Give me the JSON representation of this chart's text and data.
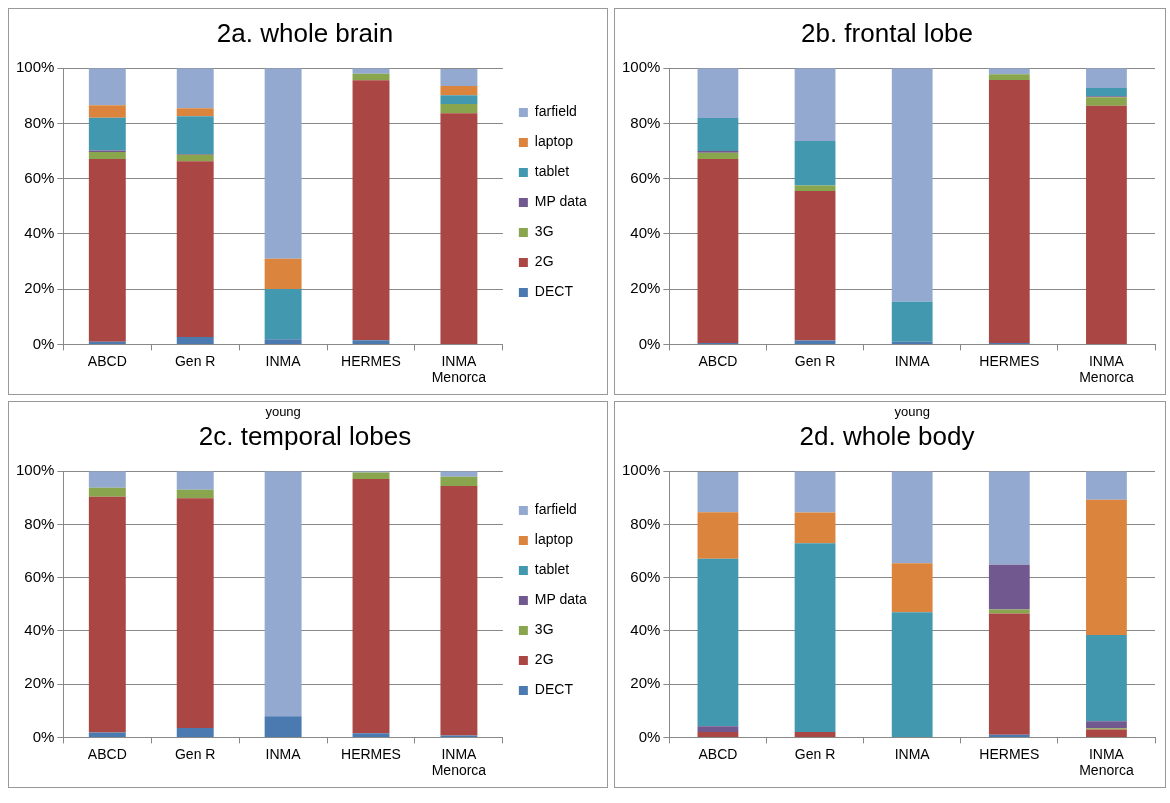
{
  "chart_data": [
    {
      "type": "bar",
      "title": "2a. whole brain",
      "stacked": true,
      "grid": "y",
      "legend": "right",
      "categories": [
        "ABCD",
        "Gen R",
        "INMA",
        "HERMES",
        "INMA Menorca"
      ],
      "ylim": [
        0,
        100
      ],
      "yticks": [
        {
          "value": 0,
          "label": "0%"
        },
        {
          "value": 20,
          "label": "20%"
        },
        {
          "value": 40,
          "label": "40%"
        },
        {
          "value": 60,
          "label": "60%"
        },
        {
          "value": 80,
          "label": "80%"
        },
        {
          "value": 100,
          "label": "100%"
        }
      ],
      "series": [
        {
          "name": "DECT",
          "color": "#4a7ab0",
          "values": [
            1,
            2.7,
            1.9,
            1.5,
            null
          ]
        },
        {
          "name": "2G",
          "color": "#aa4643",
          "values": [
            66.1,
            63.6,
            0,
            94.1,
            83.7
          ]
        },
        {
          "name": "3G",
          "color": "#89a54e",
          "values": [
            2.6,
            2.4,
            0,
            2.4,
            3.3
          ]
        },
        {
          "name": "MP data",
          "color": "#71588f",
          "values": [
            0.5,
            0.2,
            0,
            0,
            0
          ]
        },
        {
          "name": "tablet",
          "color": "#4198af",
          "values": [
            11.9,
            13.7,
            18.2,
            0,
            3.2
          ]
        },
        {
          "name": "laptop",
          "color": "#db843d",
          "values": [
            4.5,
            2.9,
            10.9,
            0,
            3.4
          ]
        },
        {
          "name": "farfield",
          "color": "#93a9cf",
          "values": [
            13.4,
            14.5,
            69,
            2,
            6.1
          ]
        }
      ]
    },
    {
      "type": "bar",
      "title": "2b. frontal lobe",
      "stacked": true,
      "grid": "y",
      "categories": [
        "ABCD",
        "Gen R",
        "INMA",
        "HERMES",
        "INMA Menorca"
      ],
      "ylim": [
        0,
        100
      ],
      "yticks": [
        {
          "value": 0,
          "label": "0%"
        },
        {
          "value": 20,
          "label": "20%"
        },
        {
          "value": 40,
          "label": "40%"
        },
        {
          "value": 60,
          "label": "60%"
        },
        {
          "value": 80,
          "label": "80%"
        },
        {
          "value": 100,
          "label": "100%"
        }
      ],
      "series": [
        {
          "color": "#4a7ab0",
          "values": [
            0.5,
            1.4,
            1,
            0.5,
            0
          ]
        },
        {
          "color": "#aa4643",
          "values": [
            66.6,
            54.1,
            0,
            95.2,
            86.4
          ]
        },
        {
          "color": "#89a54e",
          "values": [
            2.3,
            2,
            0,
            2.1,
            3.1
          ]
        },
        {
          "color": "#71588f",
          "values": [
            0.6,
            0,
            0,
            0,
            0.3
          ]
        },
        {
          "color": "#4198af",
          "values": [
            12,
            16.1,
            14.4,
            0,
            3
          ]
        },
        {
          "color": "#db843d",
          "values": [
            0,
            0,
            0,
            0,
            0
          ]
        },
        {
          "color": "#93a9cf",
          "values": [
            18,
            26.4,
            84.6,
            2.2,
            7.2
          ]
        }
      ]
    },
    {
      "type": "bar",
      "title": "2c. temporal lobes",
      "annotations": [
        "young"
      ],
      "stacked": true,
      "grid": "y",
      "legend": "right",
      "categories": [
        "ABCD",
        "Gen R",
        "INMA",
        "HERMES",
        "INMA Menorca"
      ],
      "ylim": [
        0,
        100
      ],
      "yticks": [
        {
          "value": 0,
          "label": "0%"
        },
        {
          "value": 20,
          "label": "20%"
        },
        {
          "value": 40,
          "label": "40%"
        },
        {
          "value": 60,
          "label": "60%"
        },
        {
          "value": 80,
          "label": "80%"
        },
        {
          "value": 100,
          "label": "100%"
        }
      ],
      "series": [
        {
          "name": "DECT",
          "color": "#4a7ab0",
          "values": [
            1.8,
            3.5,
            7.9,
            1.6,
            0.7
          ]
        },
        {
          "name": "2G",
          "color": "#aa4643",
          "values": [
            88.6,
            86.3,
            0,
            95.5,
            93.7
          ]
        },
        {
          "name": "3G",
          "color": "#89a54e",
          "values": [
            3.4,
            3.2,
            0,
            2.4,
            3.5
          ]
        },
        {
          "name": "MP data",
          "color": "#71588f",
          "values": [
            0,
            0,
            0,
            0,
            0
          ]
        },
        {
          "name": "tablet",
          "color": "#4198af",
          "values": [
            0,
            0,
            0,
            0,
            0
          ]
        },
        {
          "name": "laptop",
          "color": "#db843d",
          "values": [
            0,
            0,
            0,
            0,
            0
          ]
        },
        {
          "name": "farfield",
          "color": "#93a9cf",
          "values": [
            6.2,
            7,
            92.1,
            0.5,
            2.1
          ]
        }
      ]
    },
    {
      "type": "bar",
      "title": "2d. whole body",
      "annotations": [
        "young"
      ],
      "stacked": true,
      "grid": "y",
      "categories": [
        "ABCD",
        "Gen R",
        "INMA",
        "HERMES",
        "INMA Menorca"
      ],
      "ylim": [
        0,
        100
      ],
      "yticks": [
        {
          "value": 0,
          "label": "0%"
        },
        {
          "value": 20,
          "label": "20%"
        },
        {
          "value": 40,
          "label": "40%"
        },
        {
          "value": 60,
          "label": "60%"
        },
        {
          "value": 80,
          "label": "80%"
        },
        {
          "value": 100,
          "label": "100%"
        }
      ],
      "series": [
        {
          "color": "#4a7ab0",
          "values": [
            null,
            0,
            0,
            1,
            0
          ]
        },
        {
          "color": "#aa4643",
          "values": [
            2,
            2,
            0,
            45.5,
            3
          ]
        },
        {
          "color": "#89a54e",
          "values": [
            0,
            0,
            0,
            1.5,
            0.4
          ]
        },
        {
          "color": "#71588f",
          "values": [
            2.2,
            0,
            0,
            16.9,
            2.7
          ]
        },
        {
          "color": "#4198af",
          "values": [
            62.9,
            70.9,
            47,
            0,
            32.4
          ]
        },
        {
          "color": "#db843d",
          "values": [
            17.5,
            11.6,
            18.4,
            0,
            50.8
          ]
        },
        {
          "color": "#93a9cf",
          "values": [
            15.1,
            15.5,
            34.6,
            35.1,
            10.7
          ]
        }
      ]
    }
  ]
}
